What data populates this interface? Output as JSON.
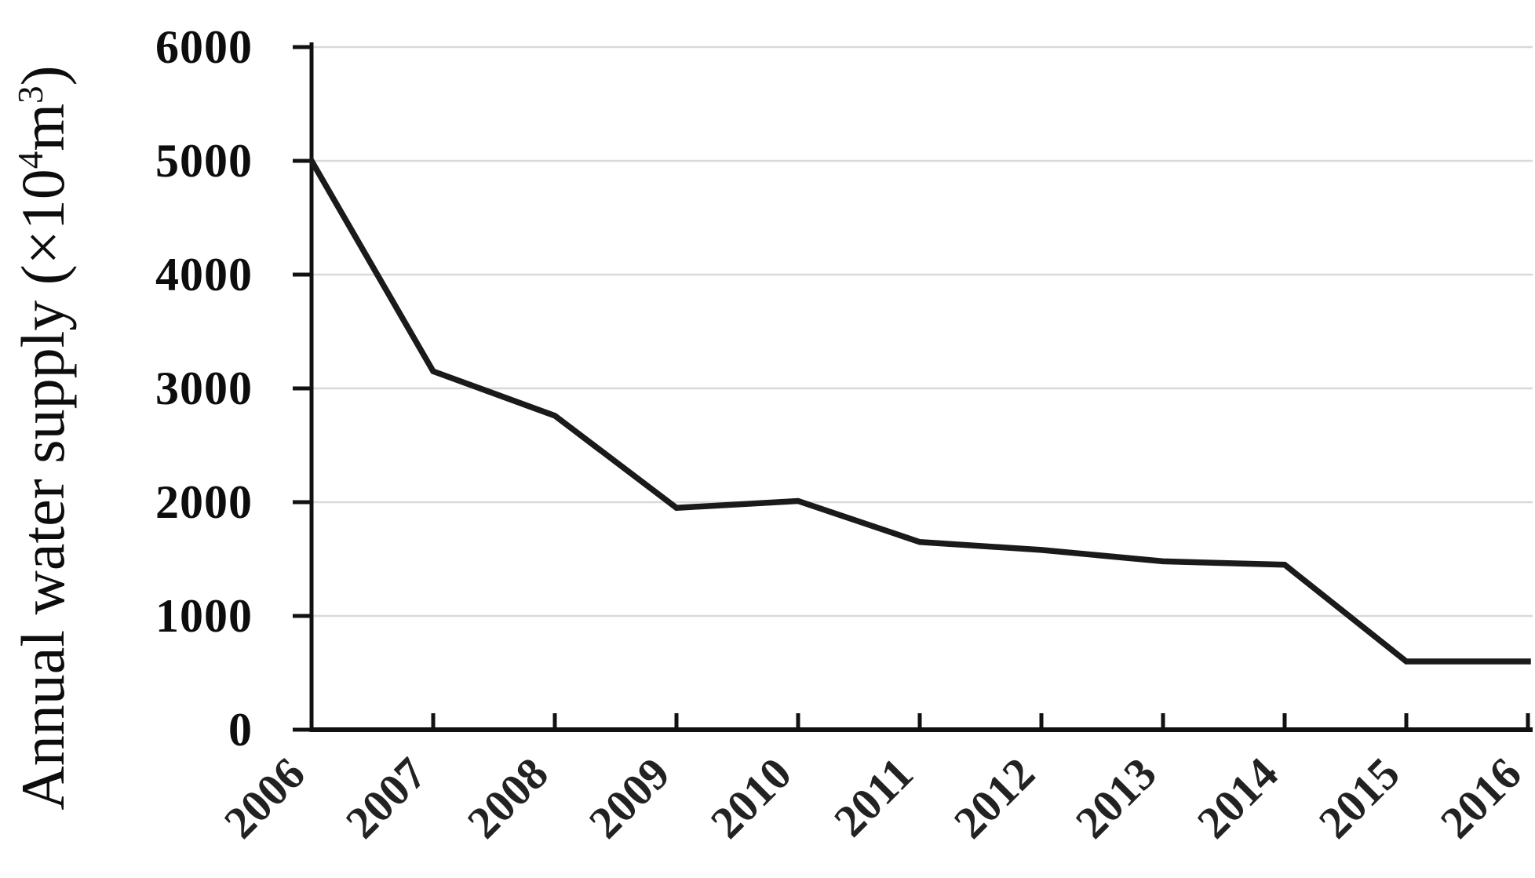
{
  "figure": {
    "background": "#ffffff"
  },
  "axis_title": {
    "pre": "Annual water supply (×10",
    "exponent": "4",
    "unit": "m",
    "unit_exponent": "3",
    "post": ")",
    "full_text": "Annual water supply (×10⁴m³)"
  },
  "chart_data": {
    "type": "line",
    "title": "",
    "x": [
      2006,
      2007,
      2008,
      2009,
      2010,
      2011,
      2012,
      2013,
      2014,
      2015,
      2016
    ],
    "series": [
      {
        "name": "Annual water supply",
        "values": [
          5000,
          3150,
          2760,
          1950,
          2010,
          1650,
          1580,
          1480,
          1450,
          600,
          600
        ]
      }
    ],
    "xlabel": "",
    "ylabel": "Annual water supply (×10⁴m³)",
    "ylim": [
      0,
      6000
    ],
    "yticks": [
      0,
      1000,
      2000,
      3000,
      4000,
      5000,
      6000
    ],
    "xtick_labels": [
      "2006",
      "2007",
      "2008",
      "2009",
      "2010",
      "2011",
      "2012",
      "2013",
      "2014",
      "2015",
      "2016"
    ],
    "xtick_rotation_deg": -45,
    "grid": "horizontal-light-gray",
    "legend": "none",
    "line_color": "#1a1a1a",
    "grid_color": "#d9d9d9",
    "axis_color": "#111111"
  }
}
